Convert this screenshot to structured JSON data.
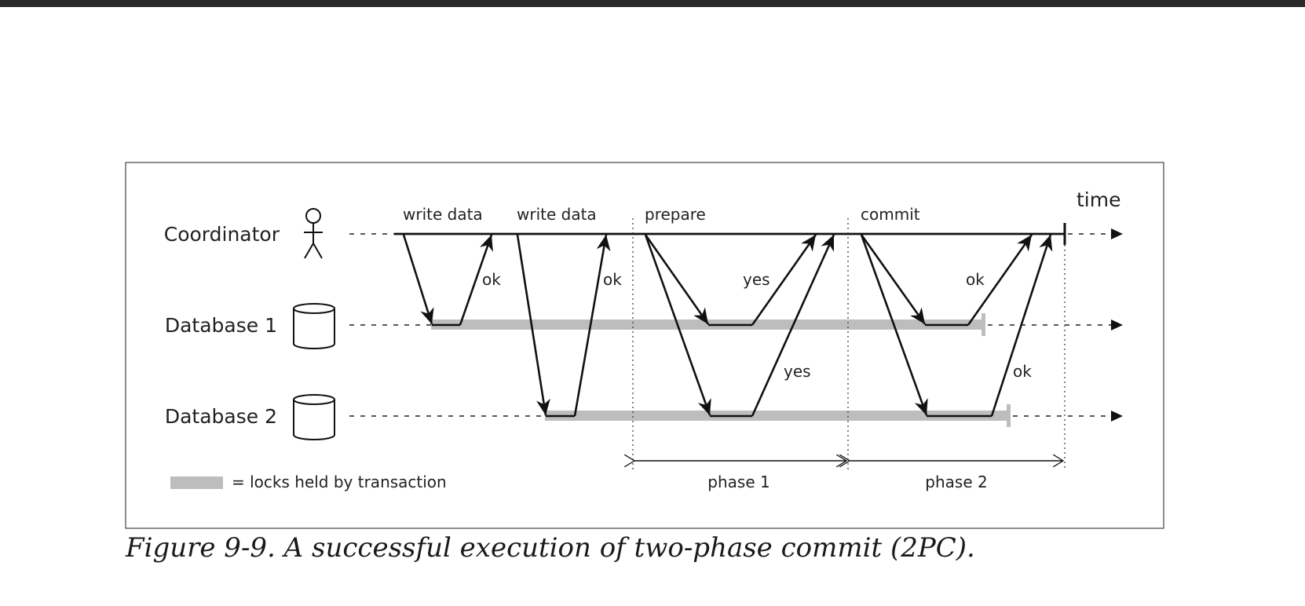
{
  "diagram": {
    "participants": {
      "coordinator": "Coordinator",
      "database1": "Database 1",
      "database2": "Database 2"
    },
    "time_label": "time",
    "messages": {
      "write_data_1": "write data",
      "write_data_2": "write data",
      "prepare": "prepare",
      "commit": "commit",
      "ok_1": "ok",
      "ok_2": "ok",
      "yes_1": "yes",
      "yes_2": "yes",
      "ok_3": "ok",
      "ok_4": "ok"
    },
    "phases": {
      "phase1": "phase 1",
      "phase2": "phase 2"
    },
    "legend": {
      "locks": "= locks held by transaction"
    },
    "colors": {
      "line": "#111111",
      "lock": "#bdbdbd"
    }
  },
  "caption": "Figure 9-9. A successful execution of two-phase commit (2PC)."
}
